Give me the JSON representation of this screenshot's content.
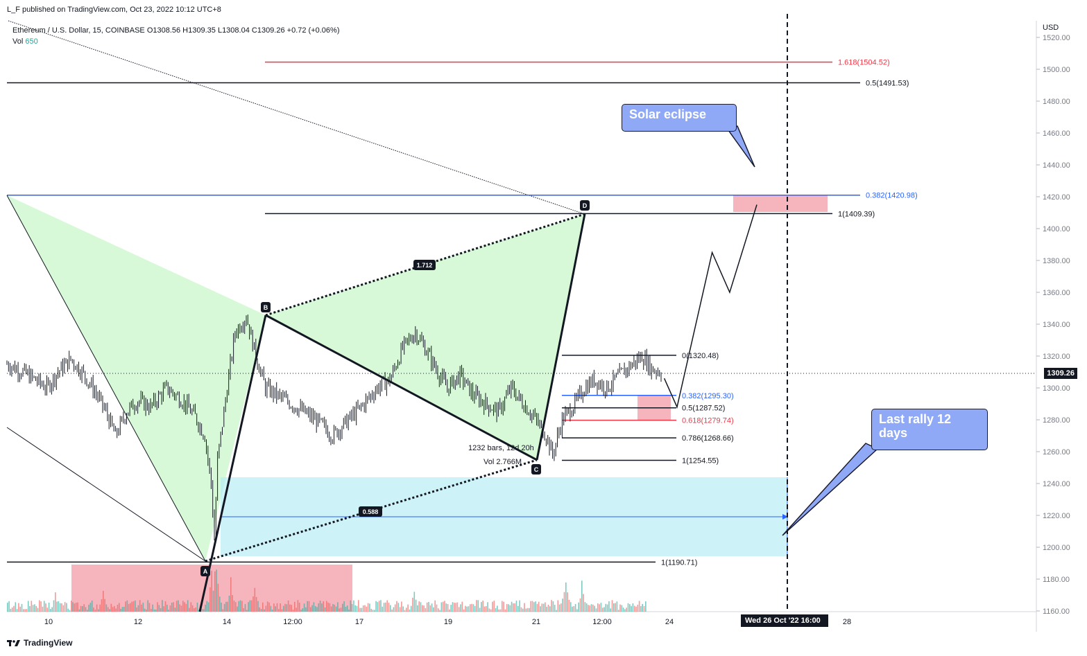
{
  "header": {
    "published": "L_F published on TradingView.com, Oct 23, 2022 10:12 UTC+8",
    "symbol": "Ethereum / U.S. Dollar, 15, COINBASE",
    "ohlc": "O1308.56  H1309.35  L1308.04  C1309.26  +0.72 (+0.06%)",
    "vol_label": "Vol",
    "vol_value": "650"
  },
  "footer": {
    "logo_text": "TradingView"
  },
  "axis": {
    "currency": "USD",
    "last_price_label": "1309.26",
    "cursor_date_label": "Wed 26 Oct '22   16:00"
  },
  "callouts": {
    "solar": "Solar eclipse",
    "rally": "Last rally 12 days"
  },
  "pattern_labels": {
    "point_a": "A",
    "point_b": "B",
    "point_c": "C",
    "point_d": "D",
    "ratio_bd": "1.712",
    "ratio_ac": "0.588",
    "range_bars": "1232 bars, 12d 20h",
    "range_vol": "Vol 2.766M"
  },
  "colors": {
    "candle": "#131722",
    "vol_up": "#26a69a",
    "vol_down": "#ef5350",
    "harmonic_fill": "#c9f7c9",
    "range_fill": "#b2ebf2",
    "zone_fill": "#f4a3ad",
    "blue_line": "#2962ff",
    "red_line": "#f23645",
    "callout_fill": "#8fa9f7"
  },
  "chart_data": {
    "type": "candlestick",
    "symbol": "ETHUSD",
    "exchange": "COINBASE",
    "interval": "15",
    "ylim": [
      1160,
      1520
    ],
    "y_ticks": [
      1160,
      1180,
      1200,
      1220,
      1240,
      1260,
      1280,
      1300,
      1320,
      1340,
      1360,
      1380,
      1400,
      1420,
      1440,
      1460,
      1480,
      1500,
      1520
    ],
    "x_tick_labels": [
      "10",
      "12",
      "14",
      "12:00",
      "17",
      "19",
      "21",
      "12:00",
      "24",
      "28"
    ],
    "last_close": 1309.26,
    "price_path": [
      [
        0,
        1315
      ],
      [
        10,
        1310
      ],
      [
        18,
        1305
      ],
      [
        25,
        1300
      ],
      [
        32,
        1310
      ],
      [
        40,
        1318
      ],
      [
        47,
        1310
      ],
      [
        55,
        1298
      ],
      [
        62,
        1285
      ],
      [
        68,
        1270
      ],
      [
        75,
        1285
      ],
      [
        82,
        1292
      ],
      [
        90,
        1288
      ],
      [
        100,
        1300
      ],
      [
        110,
        1292
      ],
      [
        118,
        1282
      ],
      [
        124,
        1270
      ],
      [
        128,
        1240
      ],
      [
        130,
        1205
      ],
      [
        132,
        1255
      ],
      [
        138,
        1300
      ],
      [
        143,
        1335
      ],
      [
        150,
        1345
      ],
      [
        156,
        1320
      ],
      [
        162,
        1300
      ],
      [
        170,
        1295
      ],
      [
        178,
        1290
      ],
      [
        186,
        1285
      ],
      [
        196,
        1278
      ],
      [
        204,
        1270
      ],
      [
        212,
        1278
      ],
      [
        222,
        1288
      ],
      [
        232,
        1300
      ],
      [
        240,
        1305
      ],
      [
        248,
        1325
      ],
      [
        256,
        1335
      ],
      [
        262,
        1325
      ],
      [
        270,
        1310
      ],
      [
        276,
        1300
      ],
      [
        284,
        1308
      ],
      [
        292,
        1296
      ],
      [
        300,
        1290
      ],
      [
        308,
        1285
      ],
      [
        316,
        1300
      ],
      [
        322,
        1292
      ],
      [
        330,
        1282
      ],
      [
        338,
        1270
      ],
      [
        342,
        1258
      ],
      [
        348,
        1280
      ],
      [
        356,
        1290
      ],
      [
        362,
        1300
      ],
      [
        368,
        1305
      ],
      [
        376,
        1300
      ],
      [
        384,
        1308
      ],
      [
        392,
        1315
      ],
      [
        398,
        1320
      ],
      [
        404,
        1312
      ],
      [
        410,
        1310
      ]
    ],
    "volume_spikes": [
      [
        30,
        18
      ],
      [
        60,
        22
      ],
      [
        128,
        40
      ],
      [
        131,
        55
      ],
      [
        140,
        30
      ],
      [
        155,
        25
      ],
      [
        255,
        20
      ],
      [
        350,
        35
      ],
      [
        360,
        28
      ]
    ],
    "harmonic_points": {
      "A": [
        132,
        1190.71
      ],
      "B": [
        165,
        1345
      ],
      "C": [
        340,
        1254.55
      ],
      "D": [
        360,
        1409.39
      ]
    },
    "horizontal_levels": [
      {
        "label": "1.618(1504.52)",
        "price": 1504.52,
        "color": "red"
      },
      {
        "label": "0.5(1491.53)",
        "price": 1491.53,
        "color": "black"
      },
      {
        "label": "0.382(1420.98)",
        "price": 1420.98,
        "color": "blue"
      },
      {
        "label": "1(1409.39)",
        "price": 1409.39,
        "color": "black"
      },
      {
        "label": "0(1320.48)",
        "price": 1320.48,
        "color": "black"
      },
      {
        "label": "0.382(1295.30)",
        "price": 1295.3,
        "color": "blue"
      },
      {
        "label": "0.5(1287.52)",
        "price": 1287.52,
        "color": "black"
      },
      {
        "label": "0.618(1279.74)",
        "price": 1279.74,
        "color": "red"
      },
      {
        "label": "0.786(1268.66)",
        "price": 1268.66,
        "color": "black"
      },
      {
        "label": "1(1254.55)",
        "price": 1254.55,
        "color": "black"
      },
      {
        "label": "1(1190.71)",
        "price": 1190.71,
        "color": "black"
      }
    ],
    "projection_path": [
      [
        412,
        1306
      ],
      [
        420,
        1288
      ],
      [
        442,
        1385
      ],
      [
        453,
        1360
      ],
      [
        470,
        1415
      ]
    ]
  }
}
